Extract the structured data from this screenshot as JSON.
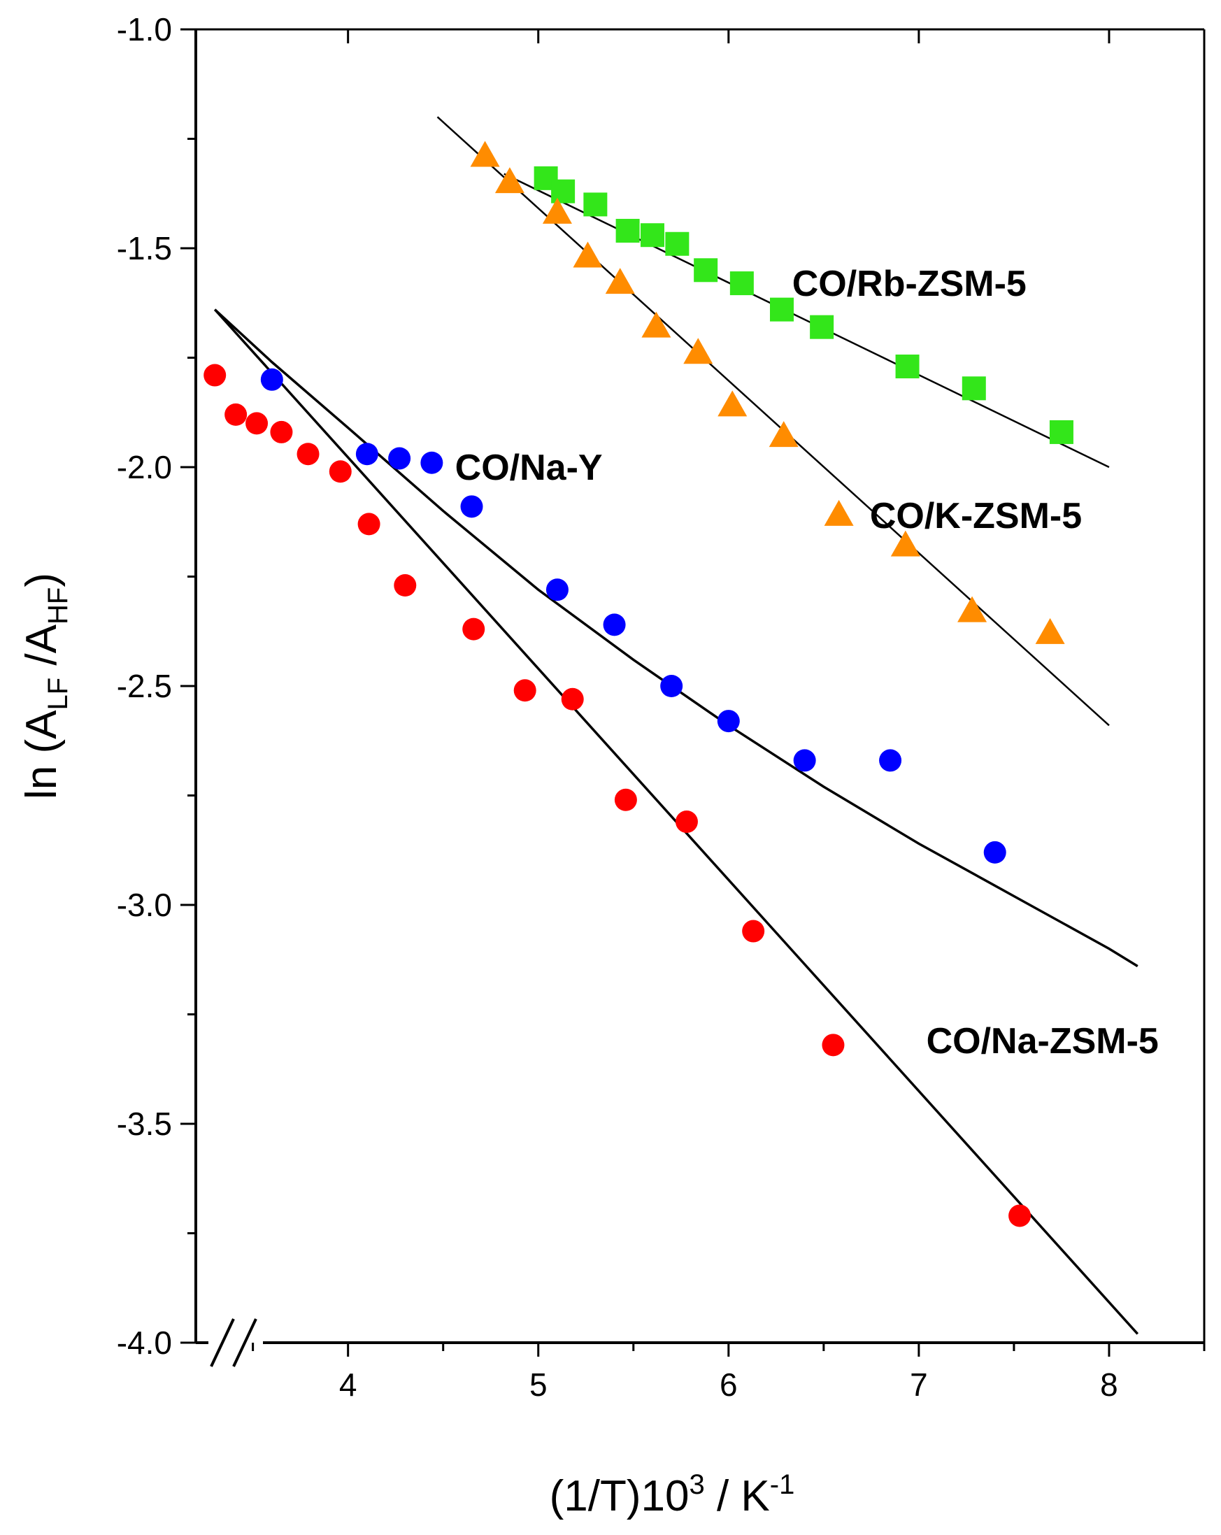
{
  "chart_data": {
    "type": "scatter",
    "xlabel": {
      "main": "(1/T)10",
      "sup": "3",
      "after": " / K",
      "sup2": "-1"
    },
    "ylabel": {
      "main": "ln (A",
      "sub1": "LF",
      "mid": " /A",
      "sub2": "HF",
      "end": ")"
    },
    "xlim": [
      3.2,
      8.5
    ],
    "ylim": [
      -4.0,
      -1.0
    ],
    "x_ticks": [
      4,
      5,
      6,
      7,
      8
    ],
    "x_tick_labels": [
      "4",
      "5",
      "6",
      "7",
      "8"
    ],
    "y_ticks": [
      -4.0,
      -3.5,
      -3.0,
      -2.5,
      -2.0,
      -1.5,
      -1.0
    ],
    "y_tick_labels": [
      "-4.0",
      "-3.5",
      "-3.0",
      "-2.5",
      "-2.0",
      "-1.5",
      "-1.0"
    ],
    "axis_break": "x",
    "grid": false,
    "series": [
      {
        "name": "CO/Rb-ZSM-5",
        "marker": "square",
        "color": "#33e61a",
        "x": [
          5.04,
          5.13,
          5.3,
          5.47,
          5.6,
          5.73,
          5.88,
          6.07,
          6.28,
          6.49,
          6.94,
          7.29,
          7.75
        ],
        "y": [
          -1.34,
          -1.37,
          -1.4,
          -1.46,
          -1.47,
          -1.49,
          -1.55,
          -1.58,
          -1.64,
          -1.68,
          -1.77,
          -1.82,
          -1.92
        ],
        "fit": {
          "x": [
            4.82,
            8.0
          ],
          "y": [
            -1.33,
            -2.0
          ]
        }
      },
      {
        "name": "CO/K-ZSM-5",
        "marker": "triangle",
        "color": "#ff8c00",
        "x": [
          4.72,
          4.85,
          5.1,
          5.26,
          5.43,
          5.62,
          5.84,
          6.02,
          6.29,
          6.58,
          6.93,
          7.28,
          7.69
        ],
        "y": [
          -1.29,
          -1.35,
          -1.42,
          -1.52,
          -1.58,
          -1.68,
          -1.74,
          -1.86,
          -1.93,
          -2.11,
          -2.18,
          -2.33,
          -2.38
        ],
        "fit": {
          "x": [
            4.47,
            8.0
          ],
          "y": [
            -1.2,
            -2.59
          ]
        }
      },
      {
        "name": "CO/Na-Y",
        "marker": "circle",
        "color": "#0000ff",
        "x": [
          3.6,
          4.1,
          4.27,
          4.44,
          4.65,
          5.1,
          5.4,
          5.7,
          6.0,
          6.4,
          6.85,
          7.4
        ],
        "y": [
          -1.8,
          -1.97,
          -1.98,
          -1.99,
          -2.09,
          -2.28,
          -2.36,
          -2.5,
          -2.58,
          -2.67,
          -2.67,
          -2.88
        ],
        "fit": {
          "x": [
            3.3,
            3.6,
            4.0,
            4.5,
            5.0,
            5.5,
            6.0,
            6.5,
            7.0,
            7.5,
            8.0,
            8.15
          ],
          "y": [
            -1.64,
            -1.76,
            -1.91,
            -2.1,
            -2.28,
            -2.44,
            -2.59,
            -2.73,
            -2.86,
            -2.98,
            -3.1,
            -3.14
          ]
        }
      },
      {
        "name": "CO/Na-ZSM-5",
        "marker": "circle",
        "color": "#ff0000",
        "x": [
          3.3,
          3.41,
          3.52,
          3.65,
          3.79,
          3.96,
          4.11,
          4.3,
          4.66,
          4.93,
          5.18,
          5.46,
          5.78,
          6.13,
          6.55,
          7.53
        ],
        "y": [
          -1.79,
          -1.88,
          -1.9,
          -1.92,
          -1.97,
          -2.01,
          -2.13,
          -2.27,
          -2.37,
          -2.51,
          -2.53,
          -2.76,
          -2.81,
          -3.06,
          -3.32,
          -3.71
        ],
        "fit": {
          "x": [
            3.3,
            8.15
          ],
          "y": [
            -1.64,
            -3.98
          ]
        }
      }
    ],
    "annotations": [
      {
        "text": "CO/Rb-ZSM-5",
        "series": 0,
        "x": 6.95,
        "y": -1.58
      },
      {
        "text": "CO/K-ZSM-5",
        "series": 1,
        "x": 7.3,
        "y": -2.11
      },
      {
        "text": "CO/Na-Y",
        "series": 2,
        "x": 4.95,
        "y": -2.0
      },
      {
        "text": "CO/Na-ZSM-5",
        "series": 3,
        "x": 7.65,
        "y": -3.31
      }
    ]
  }
}
